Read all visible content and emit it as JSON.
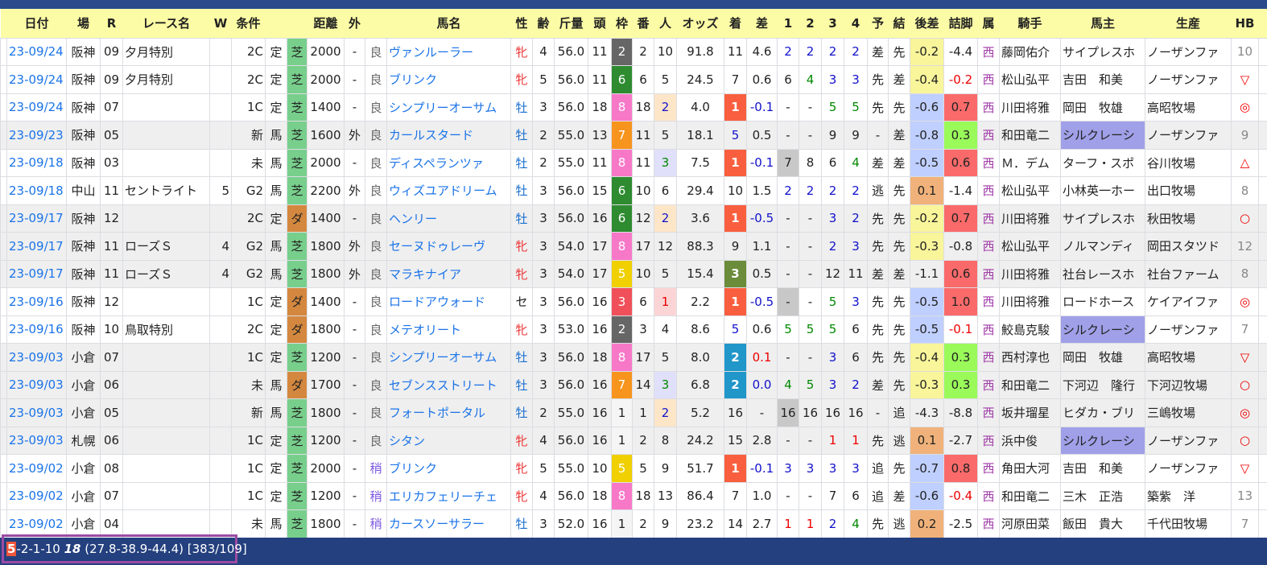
{
  "headers": [
    "",
    "日付",
    "場",
    "R",
    "レース名",
    "W",
    "条件",
    "",
    "",
    "距離",
    "外",
    "",
    "馬名",
    "性",
    "齢",
    "斤量",
    "頭",
    "枠",
    "番",
    "人",
    "オッズ",
    "着",
    "差",
    "1",
    "2",
    "3",
    "4",
    "予",
    "結",
    "後差",
    "詰脚",
    "属",
    "騎手",
    "馬主",
    "生産",
    "HB",
    ""
  ],
  "palette": {
    "header_bg": "#fcfca6",
    "turf": "#78cf8c",
    "dirt": "#d4883f",
    "win": "#f95f3e",
    "second": "#2196c9",
    "third": "#6b8c3a",
    "silk_owner": "#a0a0e8",
    "gosa_yellow": "#f8f59a",
    "gosa_blue": "#bfcfff",
    "gosa_orange": "#f0b27a",
    "tsume_red": "#fa6a6a",
    "tsume_green": "#9afa5a"
  },
  "frame_colors": {
    "1": "#f5f5f5",
    "2": "#666666",
    "3": "#f0505a",
    "5": "#f0d000",
    "6": "#2e8b30",
    "7": "#f7941d",
    "8": "#f878c8"
  },
  "rows": [
    {
      "g": 0,
      "v": [
        "",
        "23-09/24",
        "阪神",
        "09",
        "夕月特別",
        "",
        "2C",
        "定",
        "芝",
        "2000",
        "-",
        "良",
        "ヴァンルーラー",
        "牝",
        "4",
        "56.0",
        "11",
        "2",
        "2",
        "10",
        "91.8",
        "11",
        "4.6",
        "2",
        "2",
        "2",
        "2",
        "差",
        "先",
        "-0.2",
        "-4.4",
        "西",
        "藤岡佑介",
        "サイプレスホ",
        "ノーザンファ",
        "10",
        ""
      ]
    },
    {
      "g": 0,
      "v": [
        "",
        "23-09/24",
        "阪神",
        "09",
        "夕月特別",
        "",
        "2C",
        "定",
        "芝",
        "2000",
        "-",
        "良",
        "ブリンク",
        "牝",
        "5",
        "56.0",
        "11",
        "6",
        "6",
        "5",
        "24.5",
        "7",
        "0.6",
        "6",
        "4",
        "3",
        "3",
        "先",
        "差",
        "-0.4",
        "-0.2",
        "西",
        "松山弘平",
        "吉田　和美",
        "ノーザンファ",
        "▽",
        ""
      ]
    },
    {
      "g": 0,
      "v": [
        "",
        "23-09/24",
        "阪神",
        "07",
        "",
        "",
        "1C",
        "定",
        "芝",
        "1400",
        "-",
        "良",
        "シンプリーオーサム",
        "牡",
        "3",
        "56.0",
        "18",
        "8",
        "18",
        "2",
        "4.0",
        "1",
        "-0.1",
        "-",
        "-",
        "5",
        "5",
        "先",
        "先",
        "-0.6",
        "0.7",
        "西",
        "川田将雅",
        "岡田　牧雄",
        "高昭牧場",
        "◎",
        ""
      ]
    },
    {
      "g": 1,
      "v": [
        "",
        "23-09/23",
        "阪神",
        "05",
        "",
        "",
        "新",
        "馬",
        "芝",
        "1600",
        "外",
        "良",
        "カールスタード",
        "牡",
        "2",
        "55.0",
        "13",
        "7",
        "11",
        "5",
        "18.1",
        "5",
        "0.5",
        "-",
        "-",
        "9",
        "9",
        "-",
        "差",
        "-0.8",
        "0.3",
        "西",
        "和田竜二",
        "シルクレーシ",
        "ノーザンファ",
        "9",
        ""
      ]
    },
    {
      "g": 0,
      "c1g": 1,
      "v": [
        "",
        "23-09/18",
        "阪神",
        "03",
        "",
        "",
        "未",
        "馬",
        "芝",
        "2000",
        "-",
        "良",
        "ディスペランツァ",
        "牡",
        "2",
        "55.0",
        "11",
        "8",
        "11",
        "3",
        "7.5",
        "1",
        "-0.1",
        "7",
        "8",
        "6",
        "4",
        "差",
        "差",
        "-0.5",
        "0.6",
        "西",
        "Ｍ．デム",
        "ターフ・スポ",
        "谷川牧場",
        "△",
        ""
      ]
    },
    {
      "g": 0,
      "v": [
        "",
        "23-09/18",
        "中山",
        "11",
        "セントライト",
        "5",
        "G2",
        "馬",
        "芝",
        "2200",
        "外",
        "良",
        "ウィズユアドリーム",
        "牡",
        "3",
        "56.0",
        "15",
        "6",
        "10",
        "6",
        "29.4",
        "10",
        "1.5",
        "2",
        "2",
        "2",
        "2",
        "逃",
        "先",
        "0.1",
        "-1.4",
        "西",
        "松山弘平",
        "小林英一ホー",
        "出口牧場",
        "8",
        ""
      ]
    },
    {
      "g": 1,
      "v": [
        "",
        "23-09/17",
        "阪神",
        "12",
        "",
        "",
        "2C",
        "定",
        "ダ",
        "1400",
        "-",
        "良",
        "ヘンリー",
        "牡",
        "3",
        "56.0",
        "16",
        "6",
        "12",
        "2",
        "3.6",
        "1",
        "-0.5",
        "-",
        "-",
        "3",
        "2",
        "先",
        "先",
        "-0.2",
        "0.7",
        "西",
        "川田将雅",
        "サイプレスホ",
        "秋田牧場",
        "○",
        ""
      ]
    },
    {
      "g": 1,
      "v": [
        "",
        "23-09/17",
        "阪神",
        "11",
        "ローズＳ",
        "4",
        "G2",
        "馬",
        "芝",
        "1800",
        "外",
        "良",
        "セーヌドゥレーヴ",
        "牝",
        "3",
        "54.0",
        "17",
        "8",
        "17",
        "12",
        "88.3",
        "9",
        "1.1",
        "-",
        "-",
        "2",
        "3",
        "先",
        "先",
        "-0.3",
        "-0.8",
        "西",
        "松山弘平",
        "ノルマンディ",
        "岡田スタツド",
        "12",
        ""
      ]
    },
    {
      "g": 1,
      "v": [
        "",
        "23-09/17",
        "阪神",
        "11",
        "ローズＳ",
        "4",
        "G2",
        "馬",
        "芝",
        "1800",
        "外",
        "良",
        "マラキナイア",
        "牝",
        "3",
        "54.0",
        "17",
        "5",
        "10",
        "5",
        "15.4",
        "3",
        "0.5",
        "-",
        "-",
        "12",
        "11",
        "差",
        "差",
        "-1.1",
        "0.6",
        "西",
        "川田将雅",
        "社台レースホ",
        "社台ファーム",
        "8",
        ""
      ]
    },
    {
      "g": 0,
      "c1g": 1,
      "v": [
        "",
        "23-09/16",
        "阪神",
        "12",
        "",
        "",
        "1C",
        "定",
        "ダ",
        "1400",
        "-",
        "良",
        "ロードアウォード",
        "セ",
        "3",
        "56.0",
        "16",
        "3",
        "6",
        "1",
        "2.2",
        "1",
        "-0.5",
        "-",
        "-",
        "5",
        "3",
        "先",
        "先",
        "-0.5",
        "1.0",
        "西",
        "川田将雅",
        "ロードホース",
        "ケイアイファ",
        "◎",
        ""
      ]
    },
    {
      "g": 0,
      "v": [
        "",
        "23-09/16",
        "阪神",
        "10",
        "鳥取特別",
        "",
        "2C",
        "定",
        "ダ",
        "1800",
        "-",
        "良",
        "メテオリート",
        "牝",
        "3",
        "53.0",
        "16",
        "2",
        "3",
        "4",
        "8.6",
        "5",
        "0.6",
        "5",
        "5",
        "5",
        "6",
        "先",
        "先",
        "-0.5",
        "-0.1",
        "西",
        "鮫島克駿",
        "シルクレーシ",
        "ノーザンファ",
        "7",
        ""
      ]
    },
    {
      "g": 1,
      "v": [
        "",
        "23-09/03",
        "小倉",
        "07",
        "",
        "",
        "1C",
        "定",
        "芝",
        "1200",
        "-",
        "良",
        "シンプリーオーサム",
        "牡",
        "3",
        "56.0",
        "18",
        "8",
        "17",
        "5",
        "8.0",
        "2",
        "0.1",
        "-",
        "-",
        "3",
        "6",
        "先",
        "先",
        "-0.4",
        "0.3",
        "西",
        "西村淳也",
        "岡田　牧雄",
        "高昭牧場",
        "▽",
        ""
      ]
    },
    {
      "g": 1,
      "v": [
        "",
        "23-09/03",
        "小倉",
        "06",
        "",
        "",
        "未",
        "馬",
        "ダ",
        "1700",
        "-",
        "良",
        "セブンスストリート",
        "牡",
        "3",
        "56.0",
        "16",
        "7",
        "14",
        "3",
        "6.8",
        "2",
        "0.0",
        "4",
        "5",
        "3",
        "2",
        "差",
        "先",
        "-0.3",
        "0.3",
        "西",
        "和田竜二",
        "下河辺　隆行",
        "下河辺牧場",
        "○",
        ""
      ]
    },
    {
      "g": 1,
      "c1g": 1,
      "v": [
        "",
        "23-09/03",
        "小倉",
        "05",
        "",
        "",
        "新",
        "馬",
        "芝",
        "1800",
        "-",
        "良",
        "フォートポータル",
        "牡",
        "2",
        "55.0",
        "16",
        "1",
        "1",
        "2",
        "5.2",
        "16",
        "-",
        "16",
        "16",
        "16",
        "16",
        "-",
        "追",
        "-4.3",
        "-8.8",
        "西",
        "坂井瑠星",
        "ヒダカ・ブリ",
        "三嶋牧場",
        "◎",
        ""
      ]
    },
    {
      "g": 1,
      "v": [
        "",
        "23-09/03",
        "札幌",
        "06",
        "",
        "",
        "1C",
        "定",
        "芝",
        "1200",
        "-",
        "良",
        "シタン",
        "牝",
        "4",
        "56.0",
        "16",
        "1",
        "2",
        "8",
        "24.2",
        "15",
        "2.8",
        "-",
        "-",
        "1",
        "1",
        "先",
        "逃",
        "0.1",
        "-2.7",
        "西",
        "浜中俊",
        "シルクレーシ",
        "ノーザンファ",
        "○",
        ""
      ]
    },
    {
      "g": 0,
      "v": [
        "",
        "23-09/02",
        "小倉",
        "08",
        "",
        "",
        "1C",
        "定",
        "芝",
        "2000",
        "-",
        "稍",
        "ブリンク",
        "牝",
        "5",
        "55.0",
        "10",
        "5",
        "5",
        "9",
        "51.7",
        "1",
        "-0.1",
        "3",
        "3",
        "3",
        "3",
        "追",
        "先",
        "-0.7",
        "0.8",
        "西",
        "角田大河",
        "吉田　和美",
        "ノーザンファ",
        "▽",
        ""
      ]
    },
    {
      "g": 0,
      "v": [
        "",
        "23-09/02",
        "小倉",
        "07",
        "",
        "",
        "1C",
        "定",
        "芝",
        "1200",
        "-",
        "稍",
        "エリカフェリーチェ",
        "牝",
        "4",
        "56.0",
        "18",
        "8",
        "18",
        "13",
        "86.4",
        "7",
        "1.0",
        "-",
        "-",
        "7",
        "6",
        "追",
        "差",
        "-0.6",
        "-0.4",
        "西",
        "和田竜二",
        "三木　正浩",
        "築紫　洋",
        "13",
        ""
      ]
    },
    {
      "g": 0,
      "v": [
        "",
        "23-09/02",
        "小倉",
        "04",
        "",
        "",
        "未",
        "馬",
        "芝",
        "1800",
        "-",
        "稍",
        "カースソーサラー",
        "牡",
        "3",
        "52.0",
        "16",
        "1",
        "2",
        "9",
        "23.2",
        "14",
        "2.7",
        "1",
        "1",
        "2",
        "4",
        "先",
        "逃",
        "0.2",
        "-2.5",
        "西",
        "河原田菜",
        "飯田　貴大",
        "千代田牧場",
        "7",
        ""
      ]
    }
  ],
  "footer": {
    "wins": "5",
    "record": "-2-1-10 ",
    "count": "18",
    "rates": " (27.8-38.9-44.4) [383/109]"
  }
}
